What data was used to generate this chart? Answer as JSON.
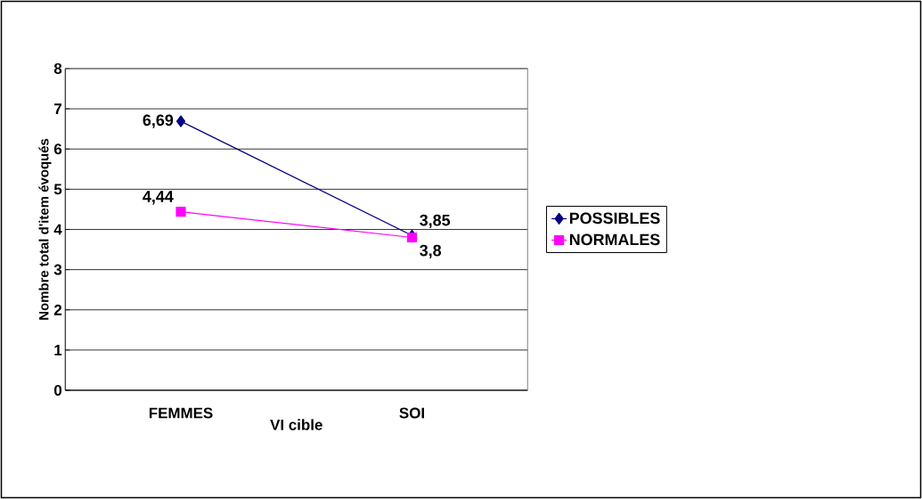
{
  "chart_data": {
    "type": "line",
    "xlabel": "VI cible",
    "ylabel": "Nombre total d'item évoqués",
    "categories": [
      "FEMMES",
      "SOI"
    ],
    "series": [
      {
        "name": "POSSIBLES",
        "color": "#000080",
        "values": [
          6.69,
          3.85
        ],
        "marker": "diamond",
        "value_labels": [
          "6,69",
          "3,85"
        ]
      },
      {
        "name": "NORMALES",
        "color": "#ff00ff",
        "values": [
          4.44,
          3.8
        ],
        "marker": "square",
        "value_labels": [
          "4,44",
          "3,8"
        ]
      }
    ],
    "ylim": [
      0,
      8
    ],
    "yticks": [
      0,
      1,
      2,
      3,
      4,
      5,
      6,
      7,
      8
    ],
    "grid": "y",
    "legend": "right",
    "line_style": "solid"
  }
}
